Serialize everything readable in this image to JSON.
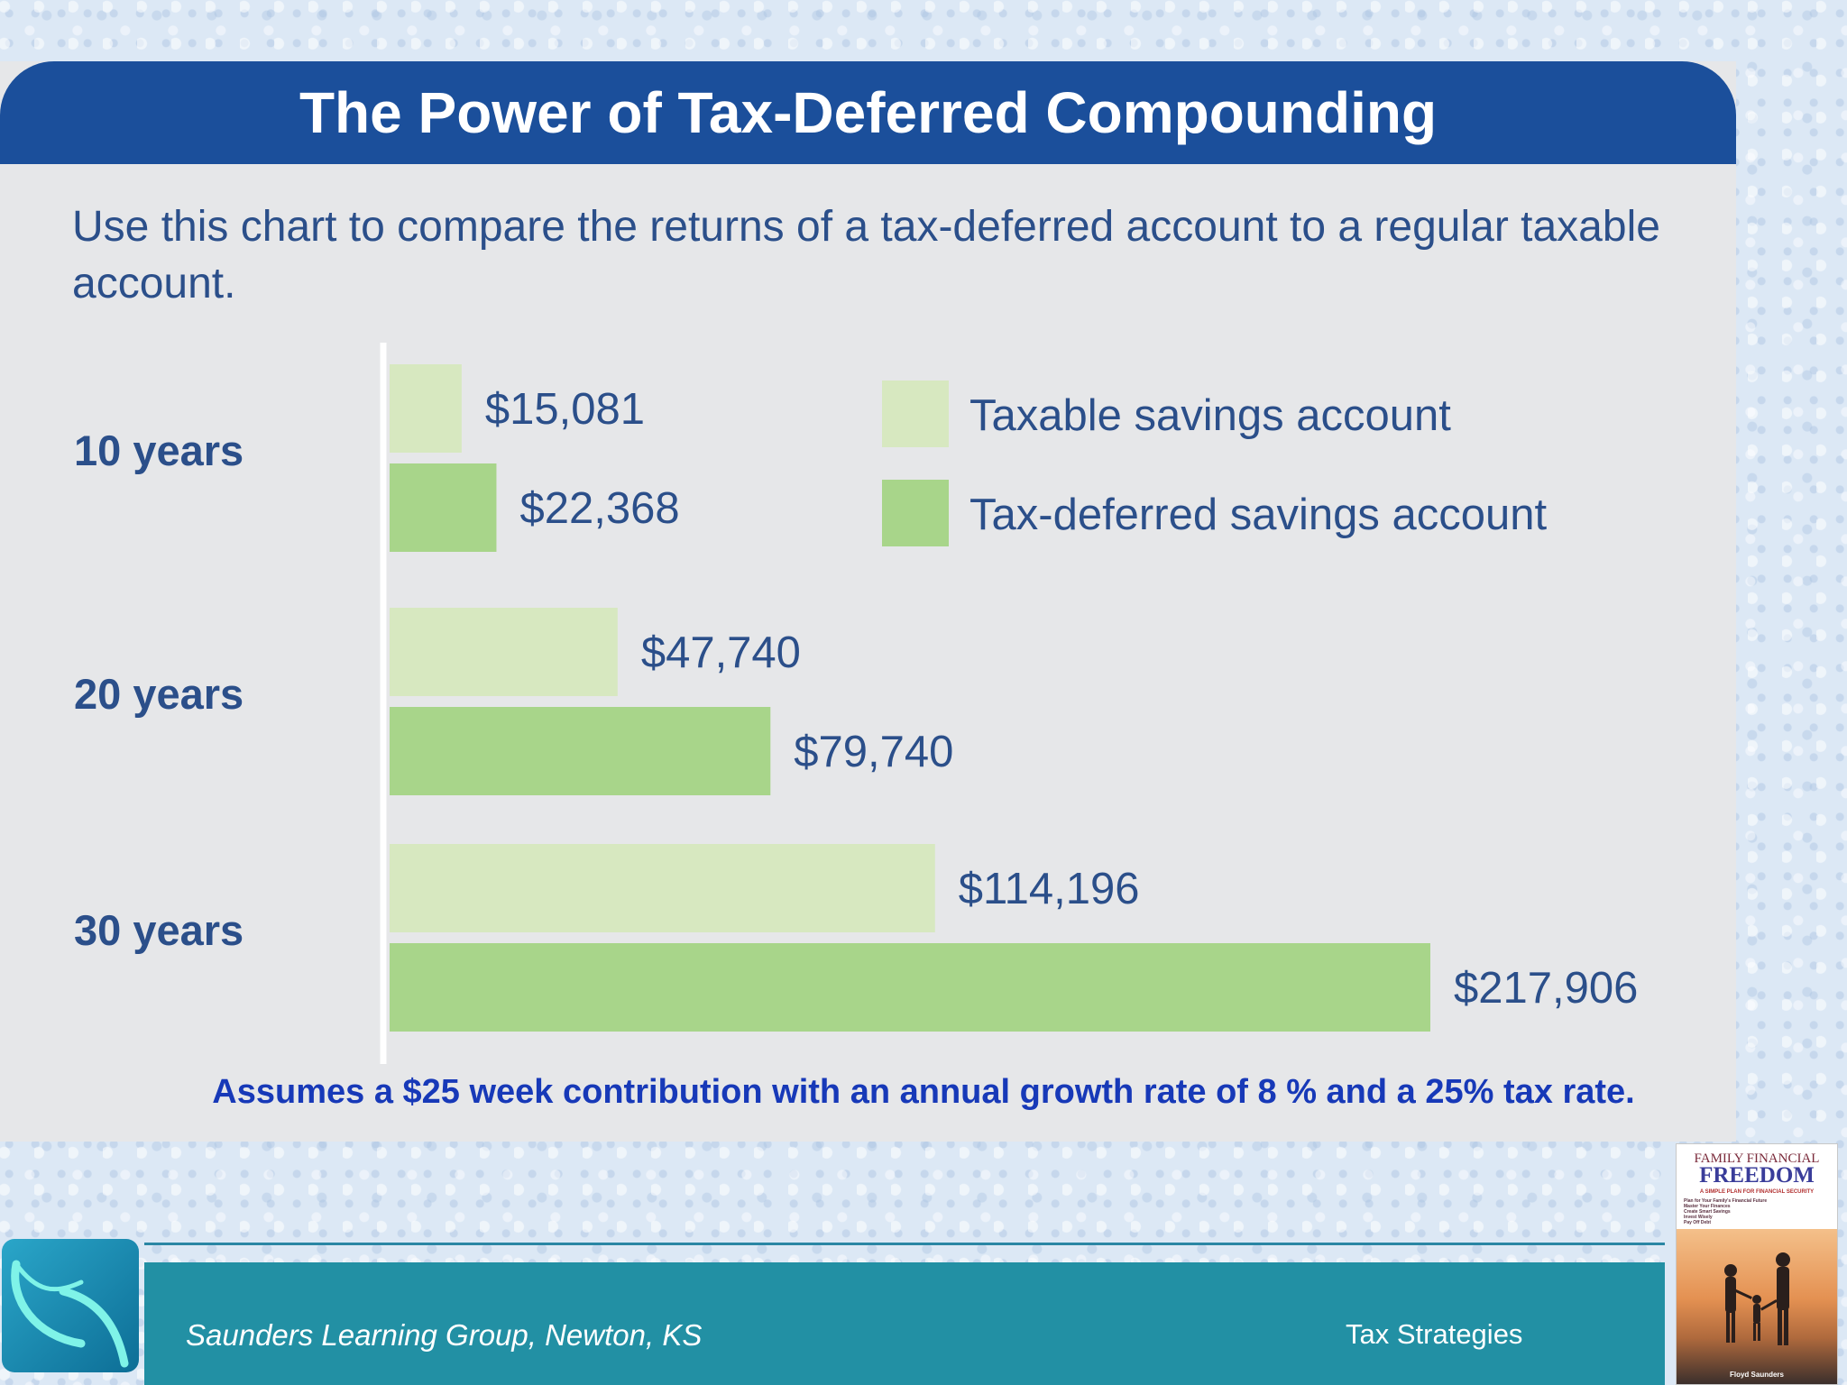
{
  "header": {
    "title": "The Power of Tax-Deferred Compounding",
    "subtitle": "Use this chart to compare the returns of a tax-deferred account to a regular taxable account."
  },
  "colors": {
    "banner": "#1b4f9b",
    "taxable": "#d7e8c0",
    "tax_deferred": "#a8d58a",
    "text_blue": "#2b4f8a",
    "footer": "#2290a4"
  },
  "chart_data": {
    "type": "bar",
    "orientation": "horizontal",
    "categories": [
      "10 years",
      "20 years",
      "30 years"
    ],
    "series": [
      {
        "name": "Taxable savings account",
        "values": [
          15081,
          47740,
          114196
        ],
        "labels": [
          "$15,081",
          "$47,740",
          "$114,196"
        ],
        "color": "#d7e8c0"
      },
      {
        "name": "Tax-deferred savings account",
        "values": [
          22368,
          79740,
          217906
        ],
        "labels": [
          "$22,368",
          "$79,740",
          "$217,906"
        ],
        "color": "#a8d58a"
      }
    ],
    "xlim": [
      0,
      217906
    ],
    "grid": false,
    "legend_position": "top-right"
  },
  "footnote": "Assumes a $25 week contribution with an annual growth rate of 8 % and a 25% tax rate.",
  "footer": {
    "left_text": "Saunders Learning Group, Newton, KS",
    "right_text": "Tax Strategies"
  },
  "book": {
    "title_line1": "FAMILY FINANCIAL",
    "title_line2": "FREEDOM",
    "tagline": "A SIMPLE PLAN FOR FINANCIAL SECURITY",
    "bullets": [
      "Plan for Your Family's Financial Future",
      "Master Your Finances",
      "Create Smart Savings",
      "Invest Wisely",
      "Pay Off Debt"
    ],
    "author": "Floyd Saunders"
  }
}
